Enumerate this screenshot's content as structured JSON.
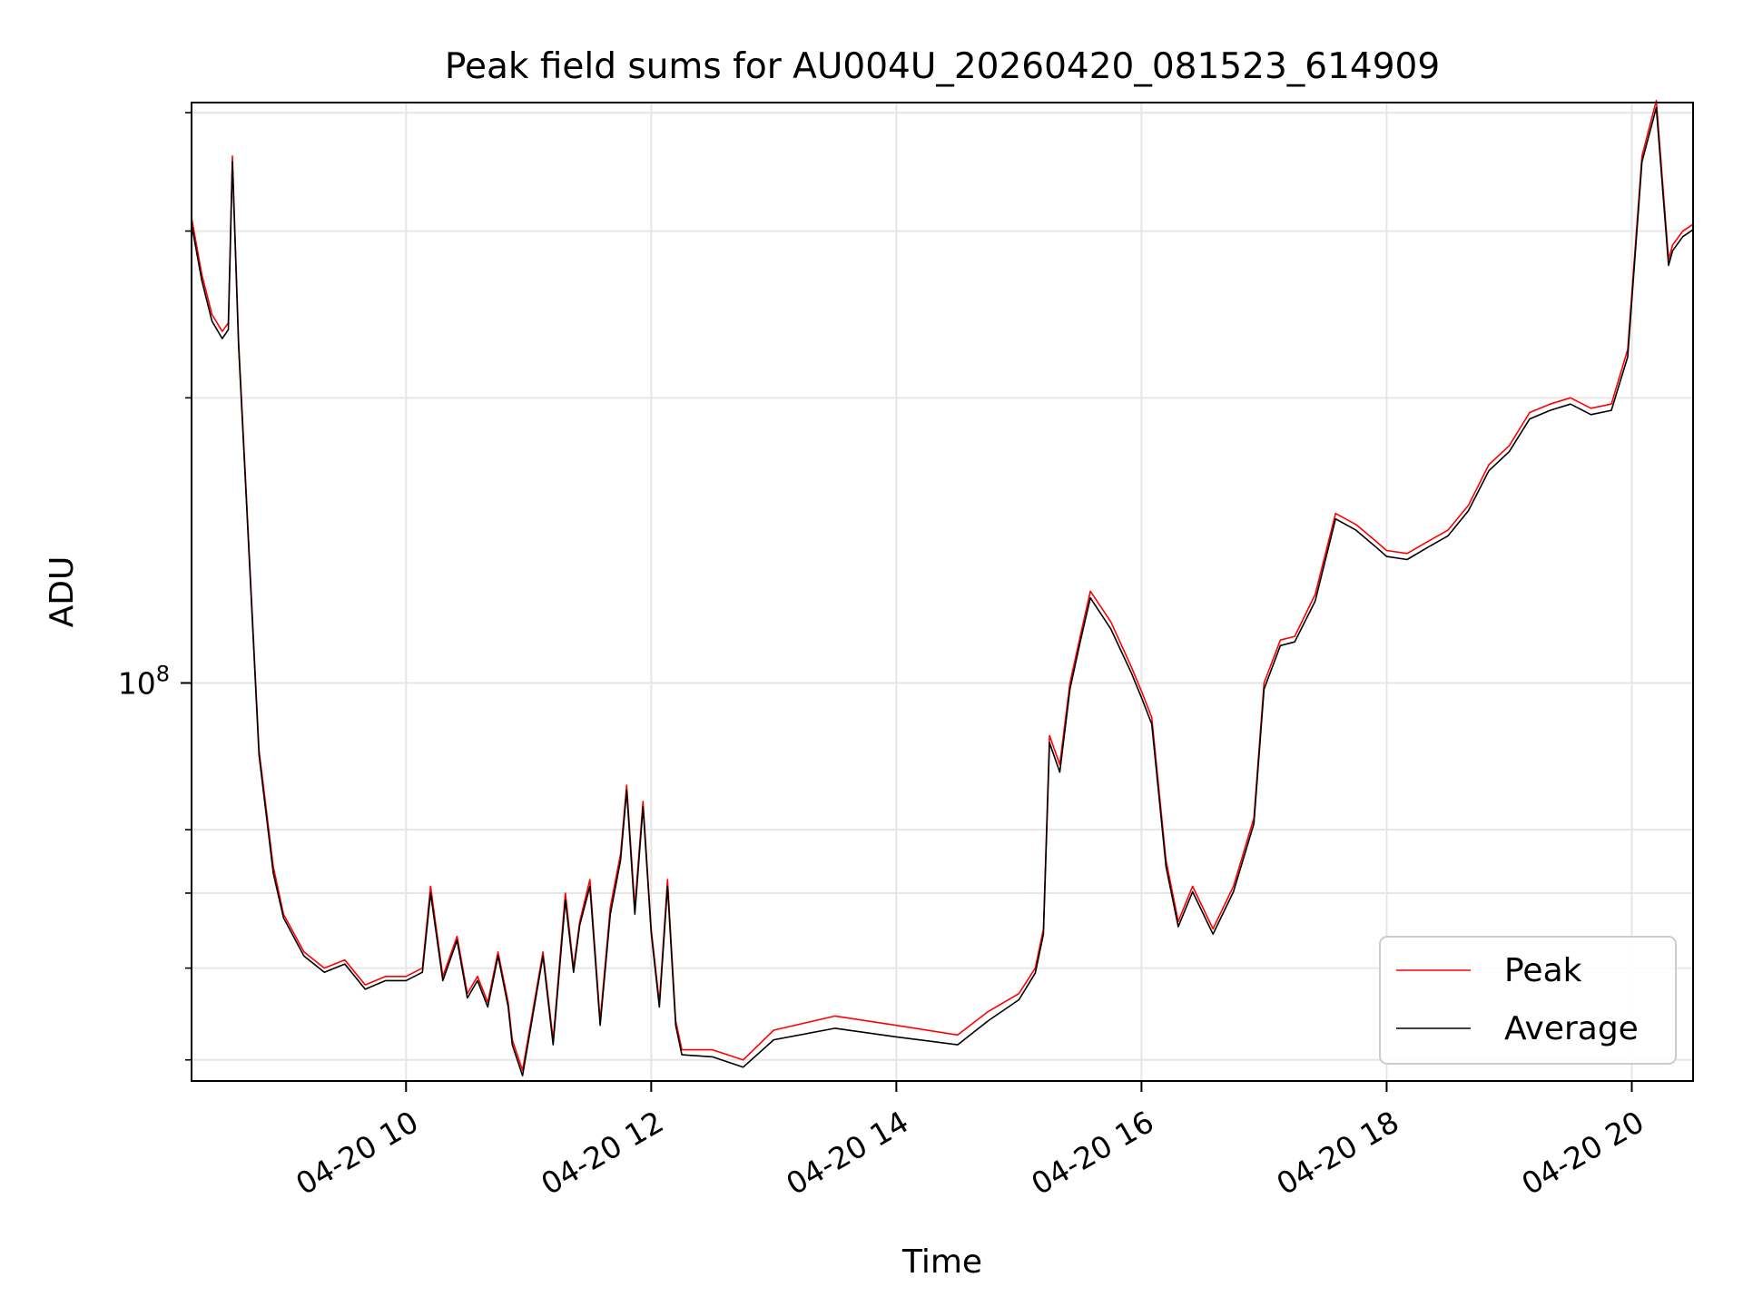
{
  "chart_data": {
    "type": "line",
    "title": "Peak field sums for AU004U_20260420_081523_614909",
    "xlabel": "Time",
    "ylabel": "ADU",
    "yscale": "log",
    "ylim": [
      38000000,
      410000000
    ],
    "xlim": [
      "2026-04-20 08:15",
      "2026-04-20 20:30"
    ],
    "x_ticks": [
      "04-20 10",
      "04-20 12",
      "04-20 14",
      "04-20 16",
      "04-20 18",
      "04-20 20"
    ],
    "y_ticks": [
      {
        "value": 100000000,
        "label": "10^8",
        "base": "10",
        "exponent": "8"
      }
    ],
    "y_minor_ticks": [
      40000000,
      50000000,
      60000000,
      70000000,
      200000000,
      300000000,
      400000000
    ],
    "grid": true,
    "legend": {
      "position": "lower-right",
      "entries": [
        "Peak",
        "Average"
      ]
    },
    "colors": {
      "Peak": "#ff0000",
      "Average": "#000000"
    },
    "series": [
      {
        "name": "Peak",
        "x": [
          "2026-04-20 08:15",
          "2026-04-20 08:20",
          "2026-04-20 08:25",
          "2026-04-20 08:30",
          "2026-04-20 08:33",
          "2026-04-20 08:35",
          "2026-04-20 08:38",
          "2026-04-20 08:42",
          "2026-04-20 08:48",
          "2026-04-20 08:55",
          "2026-04-20 09:00",
          "2026-04-20 09:10",
          "2026-04-20 09:20",
          "2026-04-20 09:30",
          "2026-04-20 09:40",
          "2026-04-20 09:50",
          "2026-04-20 10:00",
          "2026-04-20 10:08",
          "2026-04-20 10:12",
          "2026-04-20 10:18",
          "2026-04-20 10:25",
          "2026-04-20 10:30",
          "2026-04-20 10:35",
          "2026-04-20 10:40",
          "2026-04-20 10:45",
          "2026-04-20 10:50",
          "2026-04-20 10:52",
          "2026-04-20 10:57",
          "2026-04-20 11:02",
          "2026-04-20 11:07",
          "2026-04-20 11:12",
          "2026-04-20 11:18",
          "2026-04-20 11:22",
          "2026-04-20 11:25",
          "2026-04-20 11:30",
          "2026-04-20 11:35",
          "2026-04-20 11:40",
          "2026-04-20 11:45",
          "2026-04-20 11:48",
          "2026-04-20 11:52",
          "2026-04-20 11:56",
          "2026-04-20 12:00",
          "2026-04-20 12:04",
          "2026-04-20 12:08",
          "2026-04-20 12:12",
          "2026-04-20 12:15",
          "2026-04-20 12:30",
          "2026-04-20 12:45",
          "2026-04-20 13:00",
          "2026-04-20 13:30",
          "2026-04-20 14:00",
          "2026-04-20 14:30",
          "2026-04-20 14:45",
          "2026-04-20 15:00",
          "2026-04-20 15:08",
          "2026-04-20 15:12",
          "2026-04-20 15:15",
          "2026-04-20 15:20",
          "2026-04-20 15:25",
          "2026-04-20 15:30",
          "2026-04-20 15:35",
          "2026-04-20 15:45",
          "2026-04-20 15:55",
          "2026-04-20 16:00",
          "2026-04-20 16:05",
          "2026-04-20 16:12",
          "2026-04-20 16:18",
          "2026-04-20 16:25",
          "2026-04-20 16:35",
          "2026-04-20 16:45",
          "2026-04-20 16:55",
          "2026-04-20 17:00",
          "2026-04-20 17:08",
          "2026-04-20 17:15",
          "2026-04-20 17:25",
          "2026-04-20 17:35",
          "2026-04-20 17:45",
          "2026-04-20 17:55",
          "2026-04-20 18:00",
          "2026-04-20 18:10",
          "2026-04-20 18:20",
          "2026-04-20 18:30",
          "2026-04-20 18:40",
          "2026-04-20 18:50",
          "2026-04-20 19:00",
          "2026-04-20 19:10",
          "2026-04-20 19:20",
          "2026-04-20 19:30",
          "2026-04-20 19:40",
          "2026-04-20 19:50",
          "2026-04-20 19:58",
          "2026-04-20 20:05",
          "2026-04-20 20:12",
          "2026-04-20 20:18",
          "2026-04-20 20:20",
          "2026-04-20 20:25",
          "2026-04-20 20:30"
        ],
        "y": [
          310000000,
          270000000,
          245000000,
          235000000,
          240000000,
          360000000,
          230000000,
          155000000,
          85000000,
          64000000,
          57000000,
          52000000,
          50000000,
          51000000,
          48000000,
          49000000,
          49000000,
          50000000,
          61000000,
          49000000,
          54000000,
          47000000,
          49000000,
          46000000,
          52000000,
          46000000,
          42000000,
          39000000,
          45000000,
          52000000,
          42000000,
          60000000,
          50000000,
          56000000,
          62000000,
          44000000,
          58000000,
          66000000,
          78000000,
          58000000,
          75000000,
          55000000,
          46000000,
          62000000,
          44000000,
          41000000,
          41000000,
          40000000,
          43000000,
          44500000,
          43500000,
          42500000,
          45000000,
          47000000,
          50000000,
          55000000,
          88000000,
          82000000,
          100000000,
          112000000,
          125000000,
          116000000,
          104000000,
          98000000,
          92000000,
          65000000,
          56000000,
          61000000,
          55000000,
          61000000,
          72000000,
          100000000,
          111000000,
          112000000,
          124000000,
          151000000,
          147000000,
          141000000,
          138000000,
          137000000,
          141000000,
          145000000,
          154000000,
          170000000,
          178000000,
          193000000,
          197000000,
          200000000,
          195000000,
          197000000,
          225000000,
          360000000,
          412000000,
          280000000,
          290000000,
          300000000,
          305000000
        ]
      },
      {
        "name": "Average",
        "x": [
          "2026-04-20 08:15",
          "2026-04-20 08:20",
          "2026-04-20 08:25",
          "2026-04-20 08:30",
          "2026-04-20 08:33",
          "2026-04-20 08:35",
          "2026-04-20 08:38",
          "2026-04-20 08:42",
          "2026-04-20 08:48",
          "2026-04-20 08:55",
          "2026-04-20 09:00",
          "2026-04-20 09:10",
          "2026-04-20 09:20",
          "2026-04-20 09:30",
          "2026-04-20 09:40",
          "2026-04-20 09:50",
          "2026-04-20 10:00",
          "2026-04-20 10:08",
          "2026-04-20 10:12",
          "2026-04-20 10:18",
          "2026-04-20 10:25",
          "2026-04-20 10:30",
          "2026-04-20 10:35",
          "2026-04-20 10:40",
          "2026-04-20 10:45",
          "2026-04-20 10:50",
          "2026-04-20 10:52",
          "2026-04-20 10:57",
          "2026-04-20 11:02",
          "2026-04-20 11:07",
          "2026-04-20 11:12",
          "2026-04-20 11:18",
          "2026-04-20 11:22",
          "2026-04-20 11:25",
          "2026-04-20 11:30",
          "2026-04-20 11:35",
          "2026-04-20 11:40",
          "2026-04-20 11:45",
          "2026-04-20 11:48",
          "2026-04-20 11:52",
          "2026-04-20 11:56",
          "2026-04-20 12:00",
          "2026-04-20 12:04",
          "2026-04-20 12:08",
          "2026-04-20 12:12",
          "2026-04-20 12:15",
          "2026-04-20 12:30",
          "2026-04-20 12:45",
          "2026-04-20 13:00",
          "2026-04-20 13:30",
          "2026-04-20 14:00",
          "2026-04-20 14:30",
          "2026-04-20 14:45",
          "2026-04-20 15:00",
          "2026-04-20 15:08",
          "2026-04-20 15:12",
          "2026-04-20 15:15",
          "2026-04-20 15:20",
          "2026-04-20 15:25",
          "2026-04-20 15:30",
          "2026-04-20 15:35",
          "2026-04-20 15:45",
          "2026-04-20 15:55",
          "2026-04-20 16:00",
          "2026-04-20 16:05",
          "2026-04-20 16:12",
          "2026-04-20 16:18",
          "2026-04-20 16:25",
          "2026-04-20 16:35",
          "2026-04-20 16:45",
          "2026-04-20 16:55",
          "2026-04-20 17:00",
          "2026-04-20 17:08",
          "2026-04-20 17:15",
          "2026-04-20 17:25",
          "2026-04-20 17:35",
          "2026-04-20 17:45",
          "2026-04-20 17:55",
          "2026-04-20 18:00",
          "2026-04-20 18:10",
          "2026-04-20 18:20",
          "2026-04-20 18:30",
          "2026-04-20 18:40",
          "2026-04-20 18:50",
          "2026-04-20 19:00",
          "2026-04-20 19:10",
          "2026-04-20 19:20",
          "2026-04-20 19:30",
          "2026-04-20 19:40",
          "2026-04-20 19:50",
          "2026-04-20 19:58",
          "2026-04-20 20:05",
          "2026-04-20 20:12",
          "2026-04-20 20:18",
          "2026-04-20 20:20",
          "2026-04-20 20:25",
          "2026-04-20 20:30"
        ],
        "y": [
          305000000,
          266000000,
          241000000,
          231000000,
          236000000,
          355000000,
          227000000,
          153000000,
          84000000,
          63000000,
          56500000,
          51500000,
          49500000,
          50500000,
          47500000,
          48500000,
          48500000,
          49500000,
          60000000,
          48500000,
          53500000,
          46500000,
          48500000,
          45500000,
          51500000,
          45500000,
          41500000,
          38500000,
          44500000,
          51500000,
          41500000,
          59000000,
          49500000,
          55500000,
          61000000,
          43500000,
          57000000,
          65000000,
          77000000,
          57000000,
          74000000,
          54500000,
          45500000,
          61000000,
          43500000,
          40500000,
          40300000,
          39300000,
          42000000,
          43200000,
          42300000,
          41500000,
          44000000,
          46300000,
          49400000,
          54300000,
          86500000,
          80500000,
          98500000,
          110500000,
          123000000,
          114000000,
          102500000,
          96500000,
          90500000,
          64000000,
          55300000,
          60200000,
          54300000,
          60200000,
          71000000,
          98500000,
          109500000,
          110500000,
          122000000,
          149000000,
          145000000,
          139000000,
          136000000,
          135000000,
          139000000,
          143000000,
          152000000,
          167500000,
          175500000,
          190000000,
          194000000,
          197000000,
          192000000,
          194000000,
          221000000,
          355000000,
          405000000,
          276000000,
          286000000,
          296000000,
          301000000
        ]
      }
    ]
  }
}
